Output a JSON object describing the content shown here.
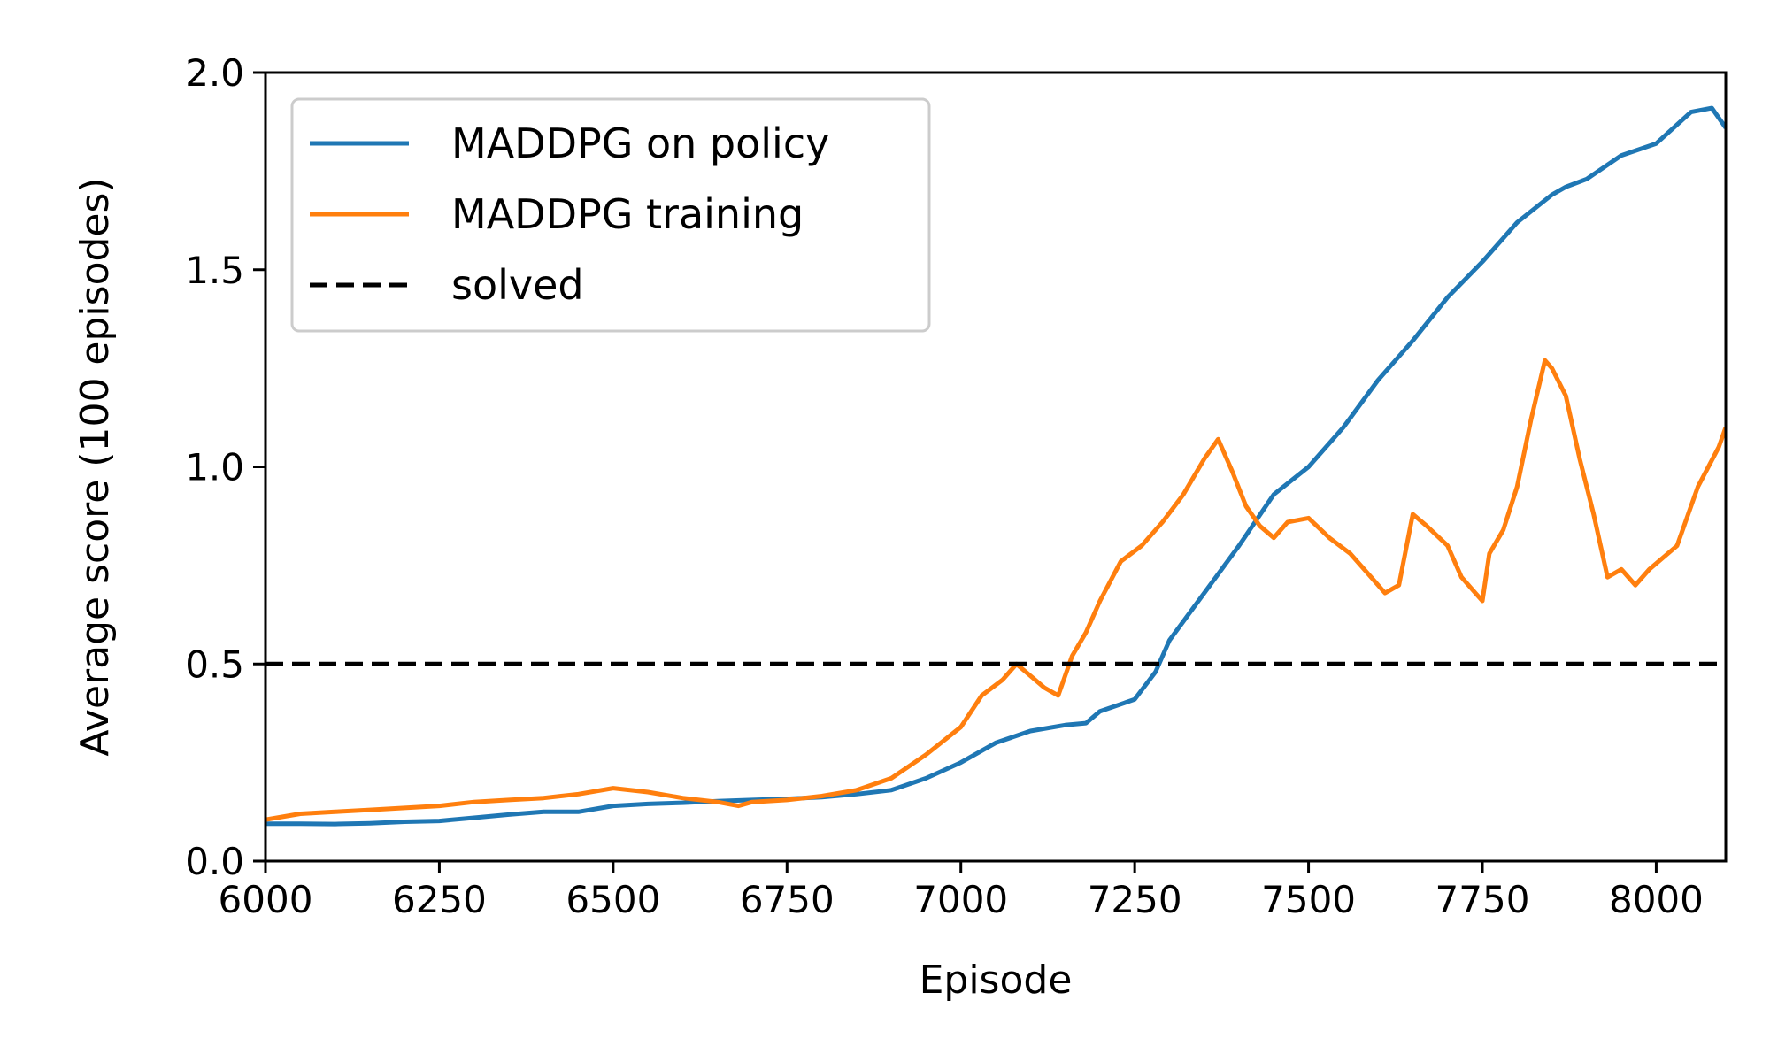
{
  "chart_data": {
    "type": "line",
    "title": "",
    "xlabel": "Episode",
    "ylabel": "Average score (100 episodes)",
    "xlim": [
      6000,
      8100
    ],
    "ylim": [
      0,
      2.0
    ],
    "xticks": [
      6000,
      6250,
      6500,
      6750,
      7000,
      7250,
      7500,
      7750,
      8000
    ],
    "xtick_labels": [
      "6000",
      "6250",
      "6500",
      "6750",
      "7000",
      "7250",
      "7500",
      "7750",
      "8000"
    ],
    "yticks": [
      0,
      0.5,
      1.0,
      1.5,
      2.0
    ],
    "ytick_labels": [
      "0.0",
      "0.5",
      "1.0",
      "1.5",
      "2.0"
    ],
    "grid": false,
    "legend_position": "top-left",
    "series": [
      {
        "name": "MADDPG on policy",
        "color": "#1f77b4",
        "style": "solid",
        "x": [
          6000,
          6050,
          6100,
          6150,
          6200,
          6250,
          6300,
          6350,
          6400,
          6450,
          6500,
          6550,
          6600,
          6650,
          6700,
          6750,
          6800,
          6850,
          6900,
          6950,
          7000,
          7050,
          7100,
          7150,
          7180,
          7200,
          7250,
          7280,
          7300,
          7350,
          7400,
          7450,
          7500,
          7550,
          7600,
          7650,
          7700,
          7750,
          7800,
          7850,
          7870,
          7900,
          7950,
          8000,
          8050,
          8080,
          8100
        ],
        "y": [
          0.095,
          0.095,
          0.094,
          0.096,
          0.1,
          0.102,
          0.11,
          0.118,
          0.125,
          0.125,
          0.14,
          0.145,
          0.148,
          0.152,
          0.155,
          0.158,
          0.162,
          0.17,
          0.18,
          0.21,
          0.25,
          0.3,
          0.33,
          0.345,
          0.35,
          0.38,
          0.41,
          0.48,
          0.56,
          0.68,
          0.8,
          0.93,
          1.0,
          1.1,
          1.22,
          1.32,
          1.43,
          1.52,
          1.62,
          1.69,
          1.71,
          1.73,
          1.79,
          1.82,
          1.9,
          1.91,
          1.86
        ]
      },
      {
        "name": "MADDPG training",
        "color": "#ff7f0e",
        "style": "solid",
        "x": [
          6000,
          6050,
          6100,
          6150,
          6200,
          6250,
          6300,
          6350,
          6400,
          6450,
          6500,
          6550,
          6600,
          6650,
          6680,
          6700,
          6750,
          6800,
          6850,
          6900,
          6950,
          7000,
          7030,
          7060,
          7080,
          7100,
          7120,
          7140,
          7160,
          7180,
          7200,
          7230,
          7260,
          7290,
          7320,
          7350,
          7370,
          7390,
          7410,
          7430,
          7450,
          7470,
          7500,
          7530,
          7560,
          7590,
          7610,
          7630,
          7650,
          7670,
          7700,
          7720,
          7740,
          7750,
          7760,
          7780,
          7800,
          7820,
          7840,
          7850,
          7870,
          7890,
          7910,
          7930,
          7950,
          7970,
          7990,
          8010,
          8030,
          8060,
          8090,
          8100
        ],
        "y": [
          0.105,
          0.12,
          0.125,
          0.13,
          0.135,
          0.14,
          0.15,
          0.155,
          0.16,
          0.17,
          0.185,
          0.175,
          0.16,
          0.15,
          0.14,
          0.15,
          0.155,
          0.165,
          0.18,
          0.21,
          0.27,
          0.34,
          0.42,
          0.46,
          0.5,
          0.47,
          0.44,
          0.42,
          0.52,
          0.58,
          0.66,
          0.76,
          0.8,
          0.86,
          0.93,
          1.02,
          1.07,
          0.99,
          0.9,
          0.85,
          0.82,
          0.86,
          0.87,
          0.82,
          0.78,
          0.72,
          0.68,
          0.7,
          0.88,
          0.85,
          0.8,
          0.72,
          0.68,
          0.66,
          0.78,
          0.84,
          0.95,
          1.12,
          1.27,
          1.25,
          1.18,
          1.02,
          0.88,
          0.72,
          0.74,
          0.7,
          0.74,
          0.77,
          0.8,
          0.95,
          1.05,
          1.1
        ]
      },
      {
        "name": "solved",
        "color": "#000000",
        "style": "dashed",
        "x": [
          6000,
          8100
        ],
        "y": [
          0.5,
          0.5
        ]
      }
    ]
  }
}
